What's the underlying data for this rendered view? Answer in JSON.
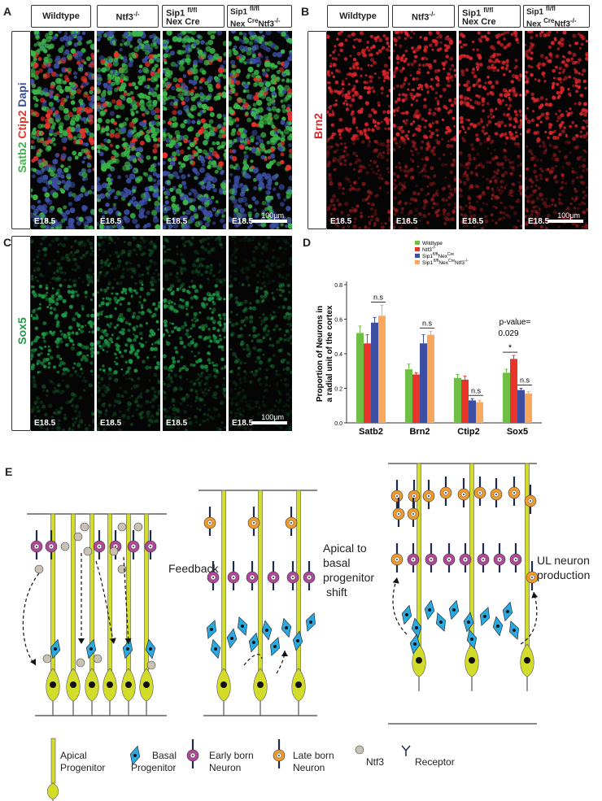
{
  "panel_letters": {
    "a": "A",
    "b": "B",
    "c": "C",
    "d": "D",
    "e": "E"
  },
  "headers": {
    "wildtype": "Wildtype",
    "ntf3": "Ntf3",
    "ntf3_sup": "-/-",
    "sip1_line1": "Sip1",
    "sip1_sup1": "fl/fl",
    "sip1_line2": "Nex Cre",
    "dko_line1": "Sip1",
    "dko_sup1": "fl/fl",
    "dko_line2a": "Nex",
    "dko_sup2": "Cre",
    "dko_line2b": "Ntf3",
    "dko_sup3": "-/-"
  },
  "panel_a": {
    "side": {
      "satb2": "Satb2",
      "ctip2": "Ctip2",
      "dapi": "Dapi"
    },
    "age": "E18.5",
    "scale": "100µm"
  },
  "panel_b": {
    "side": "Brn2",
    "age": "E18.5",
    "scale": "100µm"
  },
  "panel_c": {
    "side": "Sox5",
    "age": "E18.5",
    "scale": "100µm"
  },
  "colors": {
    "wildtype": "#6fbf44",
    "ntf3": "#e8352b",
    "sip1": "#3d4fa3",
    "dko": "#f7a85c",
    "satb2_green": "#3bb54a",
    "ctip2_red": "#e8332b",
    "dapi_blue": "#3b4ea2",
    "brn2_red": "#d9252a",
    "sox5_green": "#1e9a46",
    "apical": "#d4dc2a",
    "basal": "#2aa8df",
    "early": "#b0479a",
    "late": "#f39b2a",
    "ntf3_ball": "#c8c1b4"
  },
  "chart_data": {
    "type": "bar",
    "ylabel": "Proportion of Neurons in a radial unit of the cortex",
    "ylim": [
      0,
      0.8
    ],
    "yticks": [
      "0.0",
      "0.2",
      "0.4",
      "0.6",
      "0.8"
    ],
    "categories": [
      "Satb2",
      "Brn2",
      "Ctip2",
      "Sox5"
    ],
    "series": [
      {
        "name": "Wildtype",
        "values": [
          0.52,
          0.31,
          0.26,
          0.29
        ],
        "errors": [
          0.04,
          0.03,
          0.02,
          0.02
        ]
      },
      {
        "name": "Ntf3-/-",
        "values": [
          0.46,
          0.28,
          0.25,
          0.37
        ],
        "errors": [
          0.05,
          0.01,
          0.02,
          0.02
        ]
      },
      {
        "name": "Sip1fl/flNexCre",
        "values": [
          0.58,
          0.46,
          0.13,
          0.19
        ],
        "errors": [
          0.03,
          0.05,
          0.01,
          0.01
        ]
      },
      {
        "name": "Sip1fl/flNexCreNtf3-/-",
        "values": [
          0.62,
          0.51,
          0.12,
          0.17
        ],
        "errors": [
          0.06,
          0.02,
          0.01,
          0.01
        ]
      }
    ],
    "legend_display": {
      "wildtype": "Wildtype",
      "ntf3": "Ntf3",
      "ntf3_sup": "-/-",
      "sip1": "Sip1",
      "sip1_sup": "fl/fl",
      "sip1_mid": "Nex",
      "sip1_sup2": "Cre",
      "dko": "Sip1",
      "dko_sup": "fl/fl",
      "dko_mid": "Nex",
      "dko_sup2": "Cre",
      "dko_end": "Ntf3",
      "dko_sup3": "-/-"
    },
    "annotations": {
      "ns": "n.s",
      "pvalue_line1": "p-value=",
      "pvalue_line2": "0.029",
      "star": "*"
    }
  },
  "panel_e": {
    "feedback": "Feedback",
    "apical_shift": [
      "Apical to",
      "basal",
      "progenitor",
      "shift"
    ],
    "ul_production": [
      "UL neuron",
      "production"
    ]
  },
  "key": {
    "apical": [
      "Apical",
      "Progenitor"
    ],
    "basal": [
      "Basal",
      "Progenitor"
    ],
    "early": [
      "Early born",
      "Neuron"
    ],
    "late": [
      "Late born",
      "Neuron"
    ],
    "ntf3": "Ntf3",
    "receptor": "Receptor"
  }
}
